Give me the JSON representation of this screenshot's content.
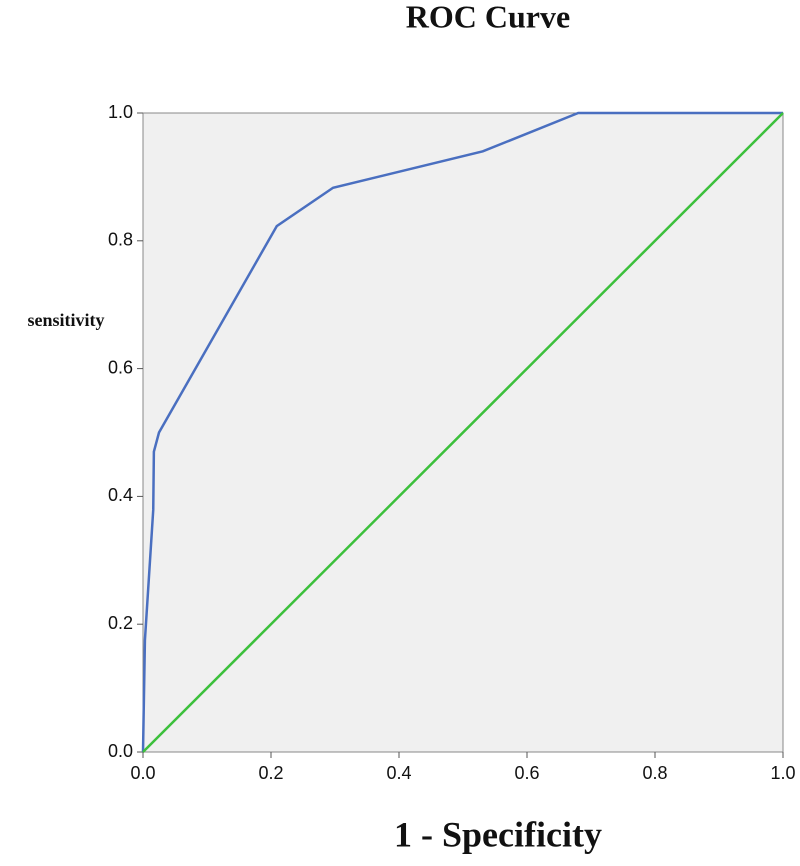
{
  "chart_data": {
    "type": "line",
    "title": "ROC Curve",
    "x_label": "1 - Specificity",
    "y_label": "sensitivity",
    "xlim": [
      0,
      1
    ],
    "ylim": [
      0,
      1
    ],
    "xticks": [
      {
        "value": 0,
        "label": "0.0"
      },
      0.2,
      0.4,
      0.6,
      0.8,
      {
        "value": 1,
        "label": "1.0"
      }
    ],
    "yticks": [
      {
        "value": 0,
        "label": "0.0"
      },
      0.2,
      0.4,
      0.6,
      0.8,
      {
        "value": 1,
        "label": "1.0"
      }
    ],
    "grid": false,
    "series": [
      {
        "color": "#4a6fc0",
        "x": [
          0,
          0.003,
          0.016,
          0.017,
          0.025,
          0.209,
          0.297,
          0.531,
          0.68,
          1
        ],
        "values": [
          0,
          0.175,
          0.379,
          0.47,
          0.5,
          0.823,
          0.883,
          0.94,
          1,
          1
        ]
      },
      {
        "color": "#3cc03c",
        "x": [
          0,
          1
        ],
        "values": [
          0,
          1
        ]
      }
    ]
  }
}
